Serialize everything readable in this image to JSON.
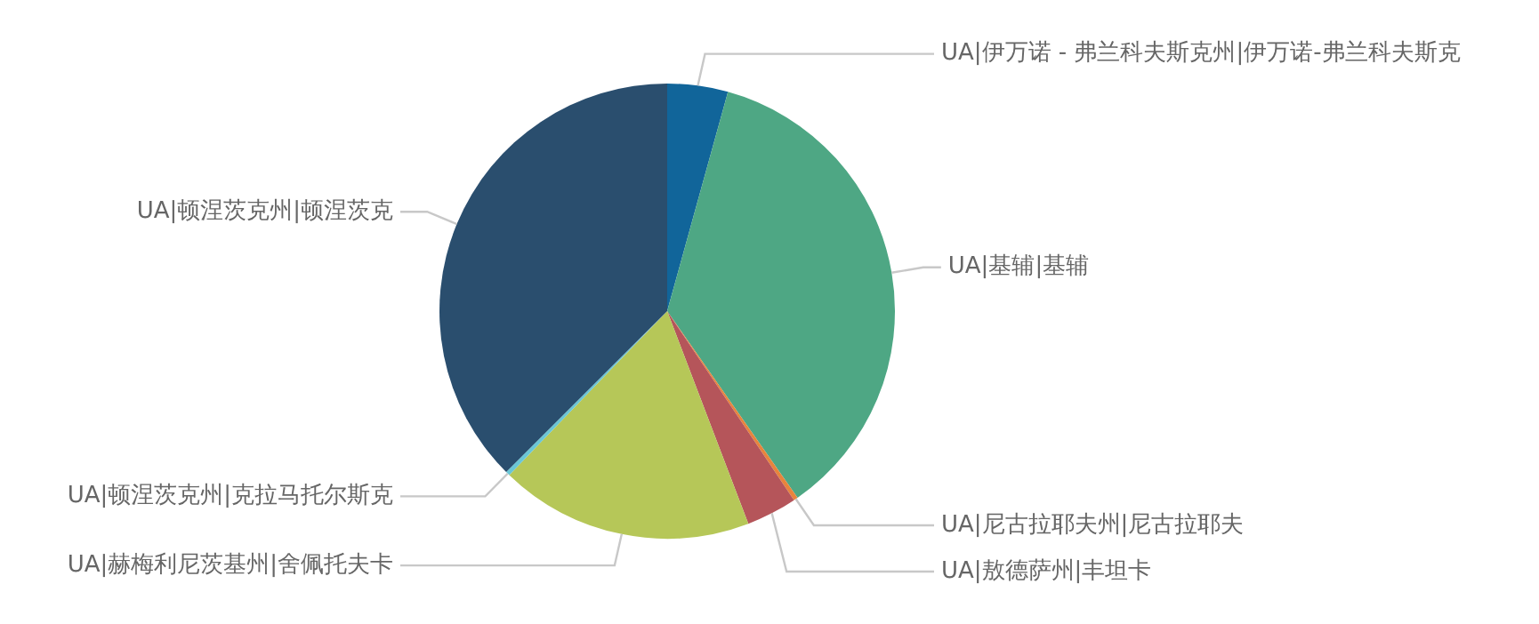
{
  "chart_data": {
    "type": "pie",
    "categories": [
      "UA|伊万诺 - 弗兰科夫斯克州|伊万诺-弗兰科夫斯克",
      "UA|基辅|基辅",
      "UA|尼古拉耶夫州|尼古拉耶夫",
      "UA|敖德萨州|丰坦卡",
      "UA|赫梅利尼茨基州|舍佩托夫卡",
      "UA|顿涅茨克州|克拉马托尔斯克",
      "UA|顿涅茨克州|顿涅茨克"
    ],
    "values": [
      4.3,
      36.0,
      0.3,
      3.6,
      18.0,
      0.3,
      37.5
    ],
    "colors": [
      "#11659a",
      "#4ea784",
      "#e8843c",
      "#b5555a",
      "#b6c758",
      "#6ac6d6",
      "#2a4e6e"
    ],
    "legend": false
  }
}
